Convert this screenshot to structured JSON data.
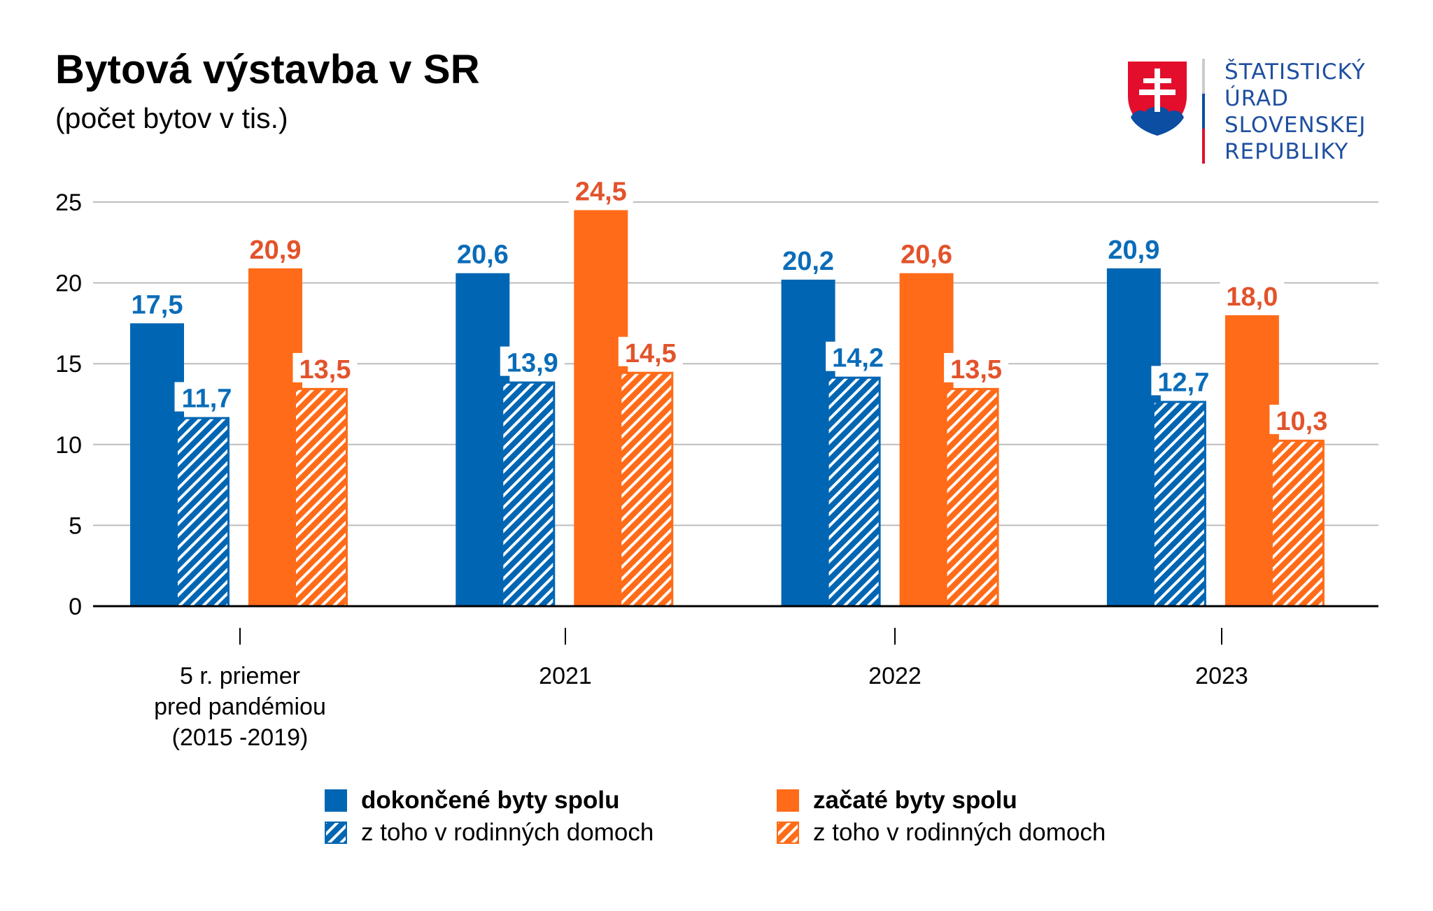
{
  "header": {
    "title": "Bytová výstavba v SR",
    "subtitle": "(počet bytov v tis.)"
  },
  "logo": {
    "icon": "slovak-coat-of-arms-icon",
    "lines": [
      "ŠTATISTICKÝ",
      "ÚRAD",
      "SLOVENSKEJ",
      "REPUBLIKY"
    ]
  },
  "colors": {
    "blue": "#0066B3",
    "blue_label": "#0A6CB8",
    "orange": "#FF6B18",
    "orange_label": "#E2532B",
    "grid": "#BDBDBD",
    "axis": "#000000"
  },
  "legend": {
    "items": [
      {
        "label": "dokončené byty spolu",
        "color": "#0066B3",
        "pattern": "solid"
      },
      {
        "label": "začaté byty spolu",
        "color": "#FF6B18",
        "pattern": "solid"
      },
      {
        "label": "z toho v rodinných domoch",
        "color": "#0066B3",
        "pattern": "hatched"
      },
      {
        "label": "z toho v rodinných domoch",
        "color": "#FF6B18",
        "pattern": "hatched"
      }
    ]
  },
  "chart_data": {
    "type": "bar",
    "title": "Bytová výstavba v SR",
    "subtitle": "(počet bytov v tis.)",
    "xlabel": "",
    "ylabel": "",
    "ylim": [
      0,
      25
    ],
    "yticks": [
      "0",
      "5",
      "10",
      "15",
      "20",
      "25"
    ],
    "ytick_values": [
      0,
      5,
      10,
      15,
      20,
      25
    ],
    "grid": true,
    "legend_position": "bottom",
    "categories": [
      [
        "5 r. priemer",
        "pred pandémiou",
        "(2015 -2019)"
      ],
      [
        "2021"
      ],
      [
        "2022"
      ],
      [
        "2023"
      ]
    ],
    "series": [
      {
        "name": "dokončené byty spolu",
        "color": "#0066B3",
        "label_color": "#0A6CB8",
        "pattern": "solid",
        "values": [
          17.5,
          20.6,
          20.2,
          20.9
        ],
        "labels": [
          "17,5",
          "20,6",
          "20,2",
          "20,9"
        ]
      },
      {
        "name": "z toho v rodinných domoch (dokončené)",
        "color": "#0066B3",
        "label_color": "#0A6CB8",
        "pattern": "hatched",
        "values": [
          11.7,
          13.9,
          14.2,
          12.7
        ],
        "labels": [
          "11,7",
          "13,9",
          "14,2",
          "12,7"
        ]
      },
      {
        "name": "začaté byty spolu",
        "color": "#FF6B18",
        "label_color": "#E2532B",
        "pattern": "solid",
        "values": [
          20.9,
          24.5,
          20.6,
          18.0
        ],
        "labels": [
          "20,9",
          "24,5",
          "20,6",
          "18,0"
        ]
      },
      {
        "name": "z toho v rodinných domoch (začaté)",
        "color": "#FF6B18",
        "label_color": "#E2532B",
        "pattern": "hatched",
        "values": [
          13.5,
          14.5,
          13.5,
          10.3
        ],
        "labels": [
          "13,5",
          "14,5",
          "13,5",
          "10,3"
        ]
      }
    ]
  }
}
